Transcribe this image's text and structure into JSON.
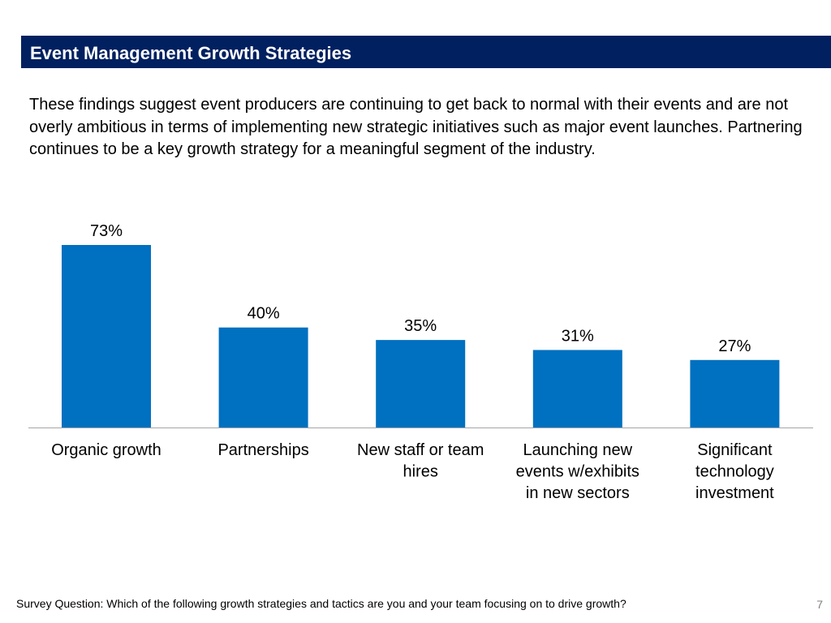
{
  "slide": {
    "title": "Event Management Growth Strategies",
    "body": "These findings suggest event producers are continuing to get back to normal with their events and are not overly ambitious in terms of implementing new strategic initiatives such as major event launches. Partnering continues to be a key growth strategy for a meaningful segment of the industry.",
    "footnote": "Survey Question: Which of the following growth strategies and tactics are you and your team focusing on to drive growth?",
    "page_number": "7"
  },
  "colors": {
    "title_bar": "#002060",
    "bar": "#0070C0",
    "axis": "#A6A6A6"
  },
  "chart_data": {
    "type": "bar",
    "title": "",
    "xlabel": "",
    "ylabel": "",
    "ylim": [
      0,
      80
    ],
    "grid": false,
    "legend": "none",
    "value_suffix": "%",
    "categories": [
      [
        "Organic growth"
      ],
      [
        "Partnerships"
      ],
      [
        "New staff or team",
        "hires"
      ],
      [
        "Launching new",
        "events w/exhibits",
        "in new sectors"
      ],
      [
        "Significant",
        "technology",
        "investment"
      ]
    ],
    "values": [
      73,
      40,
      35,
      31,
      27
    ],
    "data_labels": [
      "73%",
      "40%",
      "35%",
      "31%",
      "27%"
    ]
  }
}
